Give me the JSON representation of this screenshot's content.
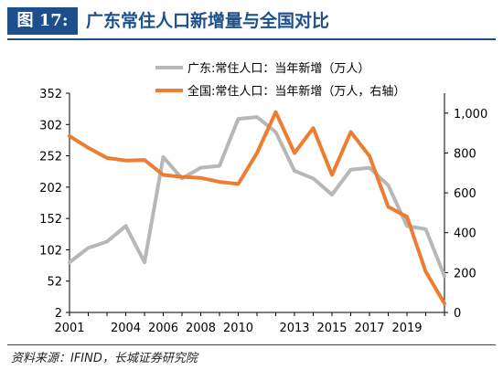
{
  "header": {
    "figure_tag": "图 17:",
    "title": "广东常住人口新增量与全国对比"
  },
  "source": "资料来源：IFIND，长城证券研究院",
  "chart_data": {
    "type": "line",
    "x_ticks": [
      "2001",
      "2004",
      "2006",
      "2008",
      "2010",
      "2013",
      "2015",
      "2017",
      "2019"
    ],
    "y_left_ticks": [
      "352",
      "302",
      "252",
      "202",
      "152",
      "102",
      "52",
      "2"
    ],
    "y_right_ticks": [
      "0",
      "200",
      "400",
      "600",
      "800",
      "1,000"
    ],
    "ylim_left": [
      2,
      352
    ],
    "ylim_right": [
      0,
      1100
    ],
    "x": [
      2001,
      2002,
      2003,
      2004,
      2005,
      2006,
      2007,
      2008,
      2009,
      2010,
      2011,
      2012,
      2013,
      2014,
      2015,
      2016,
      2017,
      2018,
      2019,
      2020,
      2021
    ],
    "series": [
      {
        "name": "广东:常住人口：当年新增（万人）",
        "axis": "left",
        "color": "#b7b7b7",
        "values": [
          82,
          105,
          115,
          140,
          82,
          250,
          216,
          233,
          236,
          311,
          314,
          290,
          228,
          216,
          190,
          230,
          233,
          205,
          140,
          135,
          60
        ]
      },
      {
        "name": "全国:常住人口：当年新增（万人，右轴）",
        "axis": "right",
        "color": "#ed7d31",
        "values": [
          885,
          826,
          775,
          762,
          765,
          690,
          680,
          675,
          655,
          645,
          800,
          1005,
          800,
          925,
          690,
          905,
          785,
          530,
          480,
          205,
          45
        ]
      }
    ],
    "legend_placement": "top",
    "grid": false
  }
}
